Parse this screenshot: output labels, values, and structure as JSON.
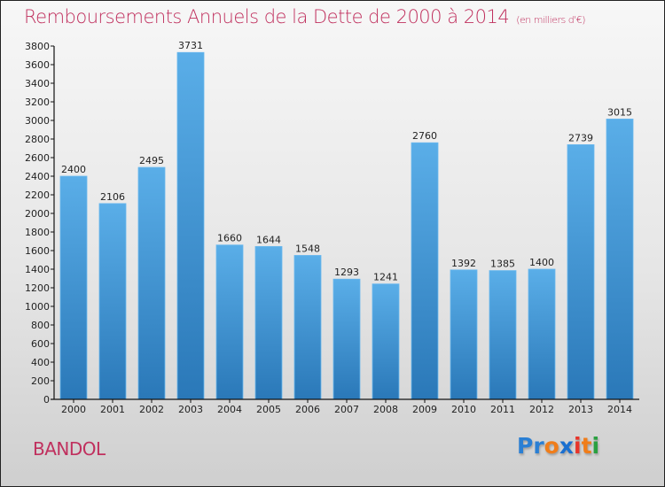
{
  "header": {
    "title": "Remboursements Annuels de la Dette de 2000 à 2014",
    "subtitle": "(en milliers d'€)"
  },
  "footer": {
    "city": "BANDOL",
    "logo": {
      "letters": [
        {
          "ch": "P",
          "color": "#2a7fd4"
        },
        {
          "ch": "r",
          "color": "#2a7fd4"
        },
        {
          "ch": "o",
          "color": "#f07d1a"
        },
        {
          "ch": "x",
          "color": "#1a6fd0"
        },
        {
          "ch": "i",
          "color": "#e8352a"
        },
        {
          "ch": "t",
          "color": "#f07d1a"
        },
        {
          "ch": "i",
          "color": "#2aa040"
        }
      ]
    }
  },
  "colors": {
    "title": "#c0305e",
    "bar_top": "#5aaee8",
    "bar_bottom": "#2a78b8"
  },
  "chart_data": {
    "type": "bar",
    "title": "Remboursements Annuels de la Dette de 2000 à 2014",
    "subtitle": "(en milliers d'€)",
    "xlabel": "",
    "ylabel": "",
    "categories": [
      "2000",
      "2001",
      "2002",
      "2003",
      "2004",
      "2005",
      "2006",
      "2007",
      "2008",
      "2009",
      "2010",
      "2011",
      "2012",
      "2013",
      "2014"
    ],
    "values": [
      2400,
      2106,
      2495,
      3731,
      1660,
      1644,
      1548,
      1293,
      1241,
      2760,
      1392,
      1385,
      1400,
      2739,
      3015
    ],
    "ylim": [
      0,
      3800
    ],
    "yticks": [
      0,
      200,
      400,
      600,
      800,
      1000,
      1200,
      1400,
      1600,
      1800,
      2000,
      2200,
      2400,
      2600,
      2800,
      3000,
      3200,
      3400,
      3600,
      3800
    ],
    "grid": false,
    "data_labels": true
  }
}
